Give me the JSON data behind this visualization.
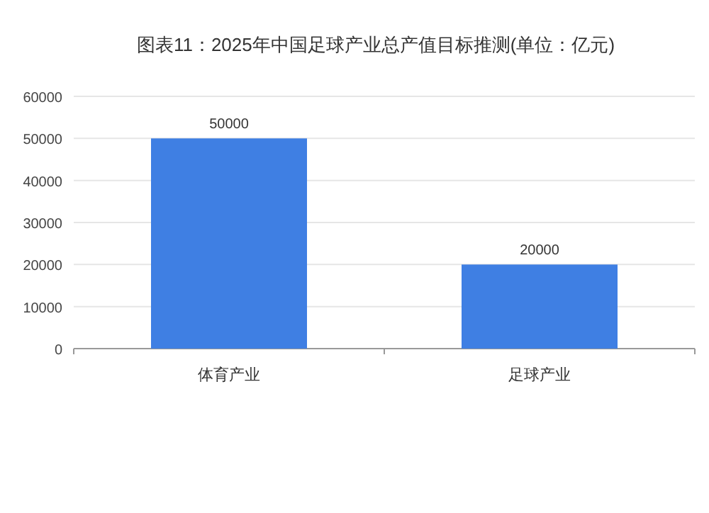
{
  "chart_data": {
    "type": "bar",
    "title": "图表11：2025年中国足球产业总产值目标推测(单位：亿元)",
    "categories": [
      "体育产业",
      "足球产业"
    ],
    "values": [
      50000,
      20000
    ],
    "color": "#3f7fe3",
    "ylim": [
      0,
      60000
    ],
    "yticks": [
      0,
      10000,
      20000,
      30000,
      40000,
      50000,
      60000
    ],
    "grid": "y",
    "data_labels": true
  }
}
